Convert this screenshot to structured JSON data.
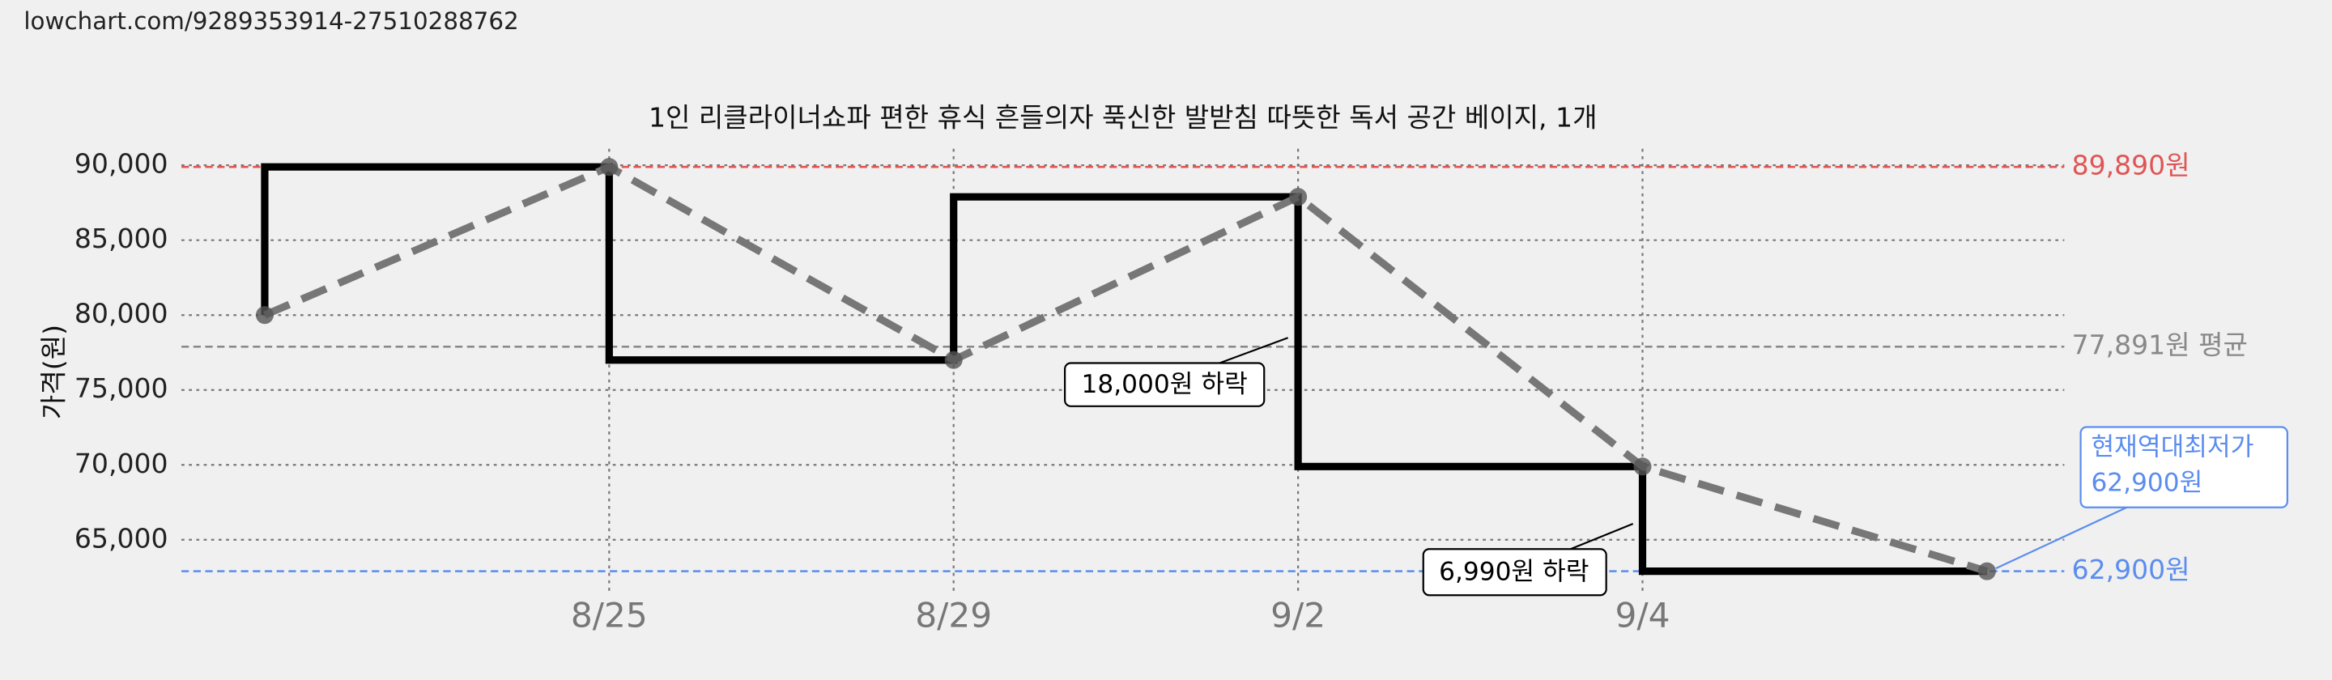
{
  "url": "lowchart.com/9289353914-27510288762",
  "chart_data": {
    "type": "line",
    "title": "1인 리클라이너쇼파 편한 휴식 흔들의자 푹신한 발받침 따뜻한 독서 공간 베이지, 1개",
    "y_label": "가격(원)",
    "categories": [
      null,
      "8/25",
      "8/29",
      "9/2",
      "9/4",
      null
    ],
    "series": [
      {
        "color": "#777777",
        "values": [
          80000,
          89890,
          77000,
          87890,
          69890,
          62900
        ]
      }
    ],
    "step_color": "#000000",
    "ylim": [
      61500,
      91100
    ],
    "yticks": [
      {
        "value": 65000,
        "label": "65,000"
      },
      {
        "value": 70000,
        "label": "70,000"
      },
      {
        "value": 75000,
        "label": "75,000"
      },
      {
        "value": 80000,
        "label": "80,000"
      },
      {
        "value": 85000,
        "label": "85,000"
      },
      {
        "value": 90000,
        "label": "90,000"
      }
    ],
    "grid": true,
    "reference_lines": [
      {
        "value": 89890,
        "label": "89,890원",
        "color": "#e05555"
      },
      {
        "value": 77891,
        "label": "77,891원 평균",
        "color": "#888888"
      },
      {
        "value": 62900,
        "label": "62,900원",
        "color": "#5b8def"
      }
    ],
    "annotations": [
      "18,000원 하락",
      "6,990원 하락"
    ],
    "current_low": {
      "title": "현재역대최저가",
      "label": "62,900원"
    }
  }
}
